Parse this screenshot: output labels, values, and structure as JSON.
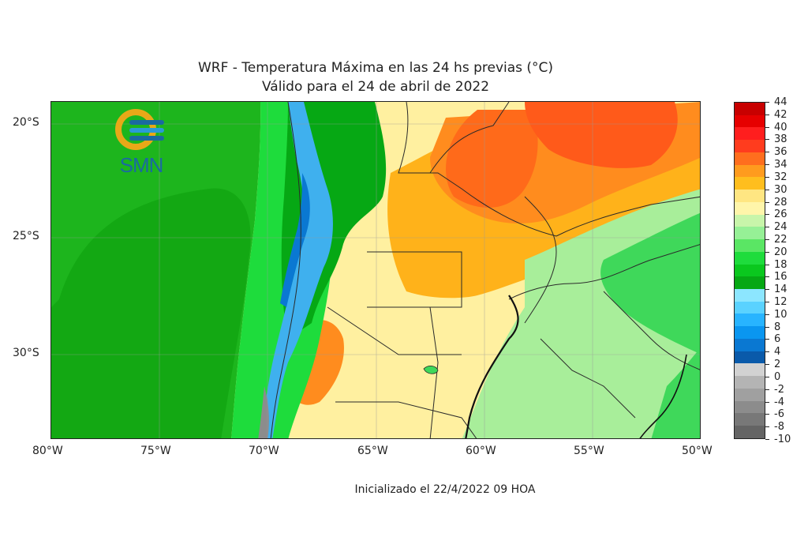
{
  "title_line1": "WRF - Temperatura Máxima en las 24 hs previas (°C)",
  "title_line2": "Válido para el 24 de abril de 2022",
  "footer": "Inicializado el 22/4/2022 09 HOA",
  "logo_text": "SMN",
  "x_ticks": [
    "80°W",
    "75°W",
    "70°W",
    "65°W",
    "60°W",
    "55°W",
    "50°W"
  ],
  "y_ticks": [
    "20°S",
    "25°S",
    "30°S"
  ],
  "colorbar": {
    "labels": [
      "44",
      "42",
      "40",
      "38",
      "36",
      "34",
      "32",
      "30",
      "28",
      "26",
      "24",
      "22",
      "20",
      "18",
      "16",
      "14",
      "12",
      "10",
      "8",
      "6",
      "4",
      "2",
      "0",
      "-2",
      "-4",
      "-6",
      "-8",
      "-10"
    ],
    "colors": [
      "#c80000",
      "#e60000",
      "#ff1e1e",
      "#ff3c1e",
      "#ff6e1e",
      "#ff9b1e",
      "#ffbe1e",
      "#ffe682",
      "#fff5aa",
      "#c8f5aa",
      "#96f096",
      "#5ae664",
      "#1edc3c",
      "#0ac81e",
      "#06a814",
      "#8ce6ff",
      "#5ad2ff",
      "#28b4ff",
      "#0a96f0",
      "#0a78d2",
      "#0a5aaa",
      "#d2d2d2",
      "#b4b4b4",
      "#a0a0a0",
      "#8c8c8c",
      "#787878",
      "#646464"
    ]
  },
  "colors": {
    "ocean": "#1db51d",
    "ocean_deep": "#13a813",
    "andes_cold": "#3fb0ee",
    "hot_core": "#ff6a1a",
    "warm": "#ffb21a",
    "mild": "#fff0a0",
    "green_light": "#a8ee9a",
    "green_mid": "#3fd85a"
  }
}
